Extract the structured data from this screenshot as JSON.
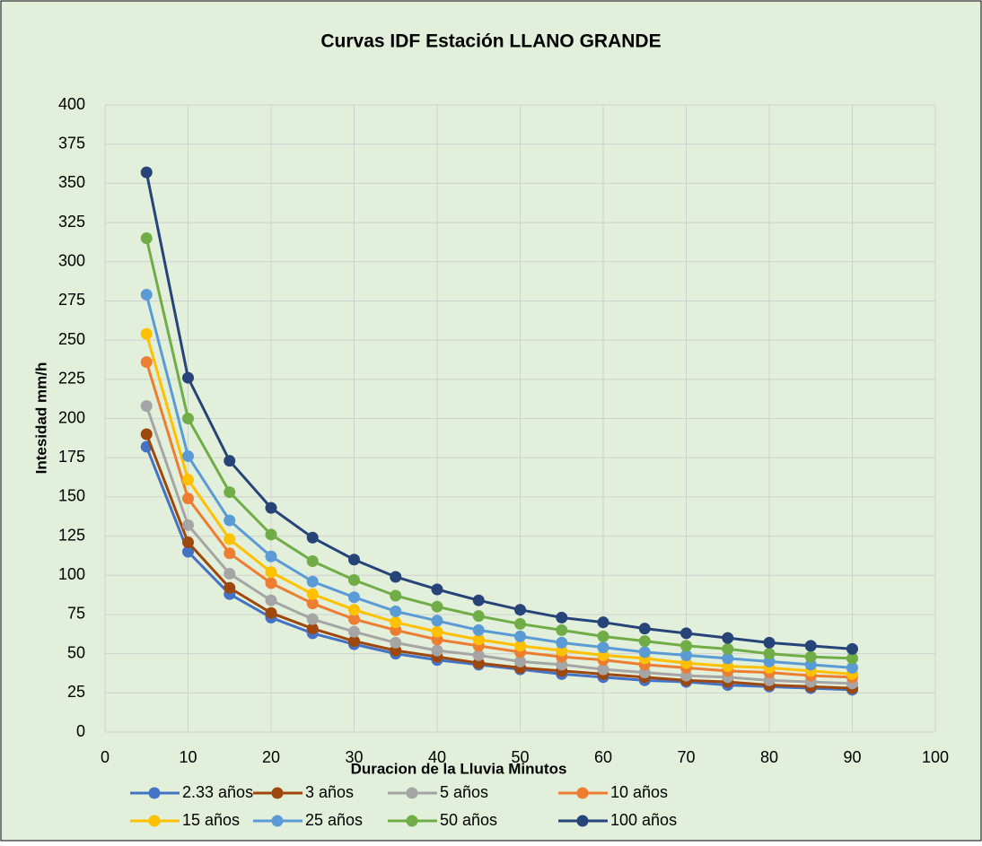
{
  "chart_data": {
    "type": "line",
    "title": "Curvas IDF Estación LLANO GRANDE",
    "x_label": "Duracion de la Lluvia Minutos",
    "y_label": "Intesidad mm/h",
    "x": [
      5,
      10,
      15,
      20,
      25,
      30,
      35,
      40,
      45,
      50,
      55,
      60,
      65,
      70,
      75,
      80,
      85,
      90
    ],
    "series": [
      {
        "name": "2.33 años",
        "color": "#4472c4",
        "values": [
          182,
          115,
          88,
          73,
          63,
          56,
          50,
          46,
          43,
          40,
          37,
          35,
          33,
          32,
          30,
          29,
          28,
          27
        ]
      },
      {
        "name": "3 años",
        "color": "#9e480e",
        "values": [
          190,
          121,
          92,
          76,
          66,
          58,
          52,
          48,
          44,
          41,
          39,
          37,
          35,
          33,
          32,
          30,
          29,
          28
        ]
      },
      {
        "name": "5 años",
        "color": "#a5a5a5",
        "values": [
          208,
          132,
          101,
          84,
          72,
          64,
          57,
          52,
          49,
          45,
          43,
          40,
          38,
          36,
          35,
          33,
          32,
          31
        ]
      },
      {
        "name": "10 años",
        "color": "#ed7d31",
        "values": [
          236,
          149,
          114,
          95,
          82,
          72,
          65,
          59,
          55,
          51,
          48,
          46,
          43,
          41,
          39,
          38,
          36,
          35
        ]
      },
      {
        "name": "15 años",
        "color": "#ffc000",
        "values": [
          254,
          161,
          123,
          102,
          88,
          78,
          70,
          64,
          59,
          55,
          52,
          49,
          47,
          44,
          42,
          41,
          39,
          37
        ]
      },
      {
        "name": "25 años",
        "color": "#5b9bd5",
        "values": [
          279,
          176,
          135,
          112,
          96,
          86,
          77,
          71,
          65,
          61,
          57,
          54,
          51,
          49,
          47,
          45,
          43,
          41
        ]
      },
      {
        "name": "50 años",
        "color": "#70ad47",
        "values": [
          315,
          200,
          153,
          126,
          109,
          97,
          87,
          80,
          74,
          69,
          65,
          61,
          58,
          55,
          53,
          50,
          48,
          47
        ]
      },
      {
        "name": "100 años",
        "color": "#264478",
        "values": [
          357,
          226,
          173,
          143,
          124,
          110,
          99,
          91,
          84,
          78,
          73,
          70,
          66,
          63,
          60,
          57,
          55,
          53
        ]
      }
    ],
    "xlim": [
      0,
      100
    ],
    "xticks": [
      0,
      10,
      20,
      30,
      40,
      50,
      60,
      70,
      80,
      90,
      100
    ],
    "ylim": [
      0,
      400
    ],
    "yticks": [
      0,
      25,
      50,
      75,
      100,
      125,
      150,
      175,
      200,
      225,
      250,
      275,
      300,
      325,
      350,
      375,
      400
    ],
    "grid": true,
    "legend": "bottom"
  }
}
